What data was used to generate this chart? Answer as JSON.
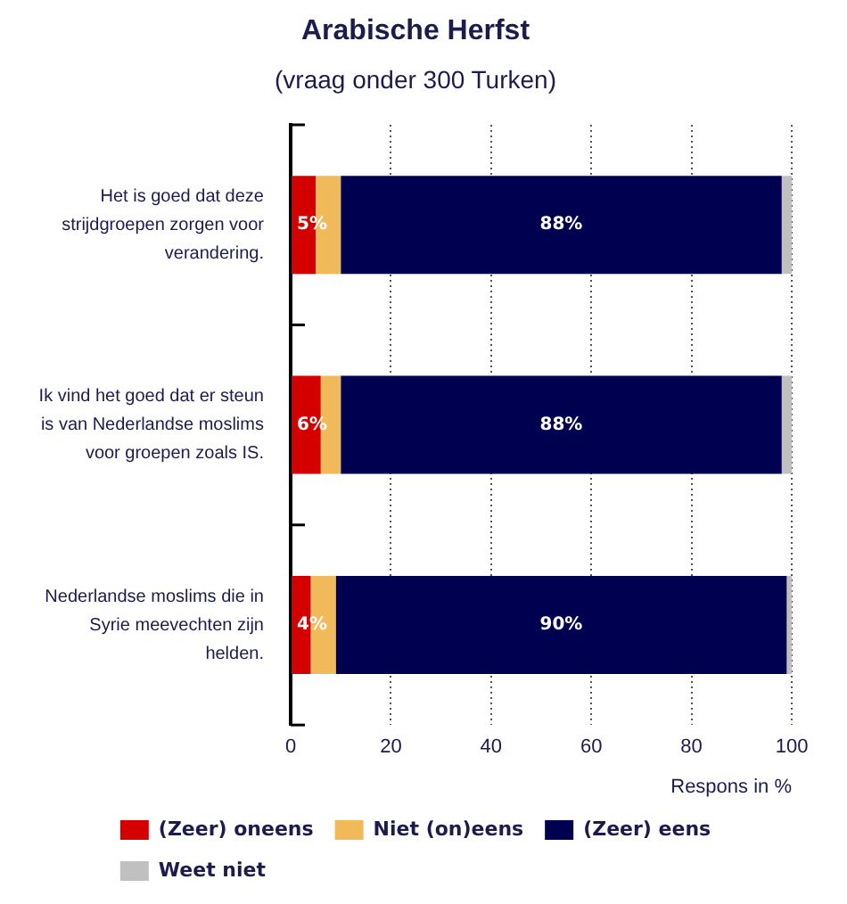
{
  "chart_data": {
    "type": "bar",
    "title": "Arabische Herfst",
    "subtitle": "(vraag onder 300 Turken)",
    "xlabel": "Respons in %",
    "categories": [
      "Het is goed dat deze strijdgroepen zorgen voor verandering.",
      "Ik vind het goed dat er steun is van Nederlandse moslims voor groepen zoals IS.",
      "Nederlandse moslims die in Syrie meevechten zijn helden."
    ],
    "orientation": "horizontal",
    "stacked": true,
    "series": [
      {
        "name": "(Zeer) oneens",
        "color": "#d40000",
        "values": [
          5,
          6,
          4
        ],
        "value_labels": [
          "5%",
          "6%",
          "4%"
        ]
      },
      {
        "name": "Niet (on)eens",
        "color": "#f0b95a",
        "values": [
          5,
          4,
          5
        ]
      },
      {
        "name": "(Zeer) eens",
        "color": "#000050",
        "values": [
          88,
          88,
          90
        ],
        "value_labels": [
          "88%",
          "88%",
          "90%"
        ]
      },
      {
        "name": "Weet niet",
        "color": "#c0c0c0",
        "values": [
          2,
          2,
          1
        ]
      }
    ],
    "xlim": [
      0,
      100
    ],
    "xticks": [
      0,
      20,
      40,
      60,
      80,
      100
    ],
    "grid": "x",
    "legend": "bottom"
  }
}
